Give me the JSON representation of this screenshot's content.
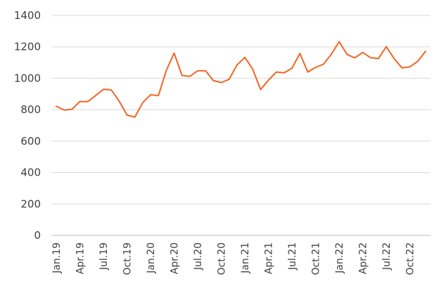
{
  "chart_data": {
    "type": "line",
    "title": "",
    "xlabel": "",
    "ylabel": "",
    "ylim": [
      0,
      1400
    ],
    "yticks": [
      0,
      200,
      400,
      600,
      800,
      1000,
      1200,
      1400
    ],
    "grid": true,
    "legend": "none",
    "x": [
      "Jan.19",
      "Feb.19",
      "Mar.19",
      "Apr.19",
      "May.19",
      "Jun.19",
      "Jul.19",
      "Aug.19",
      "Sep.19",
      "Oct.19",
      "Nov.19",
      "Dec.19",
      "Jan.20",
      "Feb.20",
      "Mar.20",
      "Apr.20",
      "May.20",
      "Jun.20",
      "Jul.20",
      "Aug.20",
      "Sep.20",
      "Oct.20",
      "Nov.20",
      "Dec.20",
      "Jan.21",
      "Feb.21",
      "Mar.21",
      "Apr.21",
      "May.21",
      "Jun.21",
      "Jul.21",
      "Aug.21",
      "Sep.21",
      "Oct.21",
      "Nov.21",
      "Dec.21",
      "Jan.22",
      "Feb.22",
      "Mar.22",
      "Apr.22",
      "May.22",
      "Jun.22",
      "Jul.22",
      "Aug.22",
      "Sep.22",
      "Oct.22",
      "Nov.22",
      "Dec.22"
    ],
    "xtick_labels": [
      "Jan.19",
      "Apr.19",
      "Jul.19",
      "Oct.19",
      "Jan.20",
      "Apr.20",
      "Jul.20",
      "Oct.20",
      "Jan.21",
      "Apr.21",
      "Jul.21",
      "Oct.21",
      "Jan.22",
      "Apr.22",
      "Jul.22",
      "Oct.22"
    ],
    "series": [
      {
        "color": "#f26522",
        "values": [
          822,
          798,
          803,
          852,
          851,
          890,
          930,
          926,
          855,
          766,
          753,
          845,
          895,
          890,
          1050,
          1160,
          1018,
          1012,
          1048,
          1048,
          985,
          973,
          994,
          1085,
          1133,
          1058,
          928,
          988,
          1040,
          1035,
          1065,
          1158,
          1040,
          1069,
          1090,
          1153,
          1233,
          1152,
          1130,
          1165,
          1131,
          1126,
          1201,
          1125,
          1066,
          1073,
          1108,
          1172
        ]
      }
    ]
  }
}
